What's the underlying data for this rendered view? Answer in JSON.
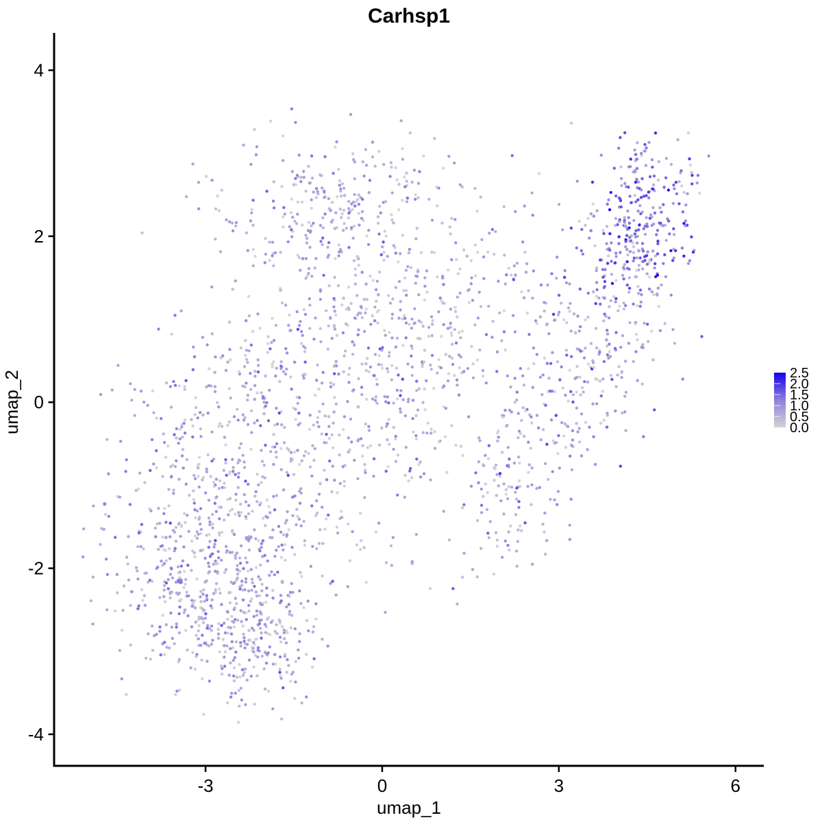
{
  "page": {
    "background": "#FFFFFF"
  },
  "chart_data": {
    "type": "scatter",
    "title": "Carhsp1",
    "xlabel": "umap_1",
    "ylabel": "umap_2",
    "xlim": [
      -5.56,
      6.48
    ],
    "ylim": [
      -4.38,
      4.45
    ],
    "x_ticks": [
      -3,
      0,
      3,
      6
    ],
    "x_tick_labels": [
      "-3",
      "0",
      "3",
      "6"
    ],
    "y_ticks": [
      -4,
      -2,
      0,
      2,
      4
    ],
    "y_tick_labels": [
      "-4",
      "-2",
      "0",
      "2",
      "4"
    ],
    "grid": false,
    "legend": {
      "position": "right",
      "type": "colorbar",
      "tick_labels": [
        "2.5",
        "2.0",
        "1.5",
        "1.0",
        "0.5",
        "0.0"
      ],
      "tick_values": [
        2.5,
        2.0,
        1.5,
        1.0,
        0.5,
        0.0
      ],
      "inner_tick_values": [
        2.0,
        1.5,
        1.0,
        0.5
      ],
      "value_range": [
        0,
        2.5
      ],
      "low_color": "#D3D3D3",
      "mid_color": "#8F80DC",
      "high_color": "#1400F0"
    },
    "point_style": {
      "radius": 2.2,
      "opacity": 0.92
    },
    "seed": 42,
    "clusters": [
      {
        "name": "lower-left-dense",
        "cx": -2.95,
        "cy": -2.15,
        "sx": 0.78,
        "sy": 0.62,
        "cor": 0.0,
        "n": 520,
        "value_mean": 0.85,
        "value_sd": 0.45,
        "zero_frac": 0.1
      },
      {
        "name": "bottom-tip",
        "cx": -2.0,
        "cy": -2.95,
        "sx": 0.45,
        "sy": 0.35,
        "cor": 0.0,
        "n": 130,
        "value_mean": 0.8,
        "value_sd": 0.45,
        "zero_frac": 0.1
      },
      {
        "name": "left-mid",
        "cx": -2.7,
        "cy": -0.5,
        "sx": 0.75,
        "sy": 0.75,
        "cor": 0.0,
        "n": 270,
        "value_mean": 0.75,
        "value_sd": 0.45,
        "zero_frac": 0.12
      },
      {
        "name": "central",
        "cx": -0.7,
        "cy": -0.4,
        "sx": 1.05,
        "sy": 0.95,
        "cor": 0.0,
        "n": 300,
        "value_mean": 0.7,
        "value_sd": 0.45,
        "zero_frac": 0.13
      },
      {
        "name": "central-upper",
        "cx": -0.3,
        "cy": 1.1,
        "sx": 1.05,
        "sy": 0.75,
        "cor": 0.0,
        "n": 240,
        "value_mean": 0.7,
        "value_sd": 0.45,
        "zero_frac": 0.12
      },
      {
        "name": "top-band",
        "cx": -0.9,
        "cy": 2.35,
        "sx": 1.05,
        "sy": 0.42,
        "cor": 0.0,
        "n": 230,
        "value_mean": 0.75,
        "value_sd": 0.45,
        "zero_frac": 0.1
      },
      {
        "name": "mid-right-connect",
        "cx": 1.4,
        "cy": 0.9,
        "sx": 0.85,
        "sy": 0.8,
        "cor": 0.3,
        "n": 210,
        "value_mean": 0.75,
        "value_sd": 0.45,
        "zero_frac": 0.12
      },
      {
        "name": "right-arm-lower",
        "cx": 2.5,
        "cy": -0.75,
        "sx": 0.6,
        "sy": 0.55,
        "cor": 0.55,
        "n": 170,
        "value_mean": 0.85,
        "value_sd": 0.5,
        "zero_frac": 0.08
      },
      {
        "name": "right-arm-mid",
        "cx": 3.6,
        "cy": 0.7,
        "sx": 0.65,
        "sy": 0.65,
        "cor": 0.4,
        "n": 210,
        "value_mean": 0.9,
        "value_sd": 0.5,
        "zero_frac": 0.08
      },
      {
        "name": "top-right-dense",
        "cx": 4.45,
        "cy": 2.1,
        "sx": 0.5,
        "sy": 0.42,
        "cor": 0.3,
        "n": 250,
        "value_mean": 1.35,
        "value_sd": 0.6,
        "zero_frac": 0.04
      },
      {
        "name": "top-right-spike",
        "cx": 4.35,
        "cy": 2.95,
        "sx": 0.18,
        "sy": 0.22,
        "cor": 0.0,
        "n": 30,
        "value_mean": 1.2,
        "value_sd": 0.5,
        "zero_frac": 0.05
      },
      {
        "name": "far-left-clump",
        "cx": -4.68,
        "cy": -1.2,
        "sx": 0.1,
        "sy": 0.16,
        "cor": 0.0,
        "n": 8,
        "value_mean": 0.7,
        "value_sd": 0.4,
        "zero_frac": 0.2
      }
    ]
  }
}
